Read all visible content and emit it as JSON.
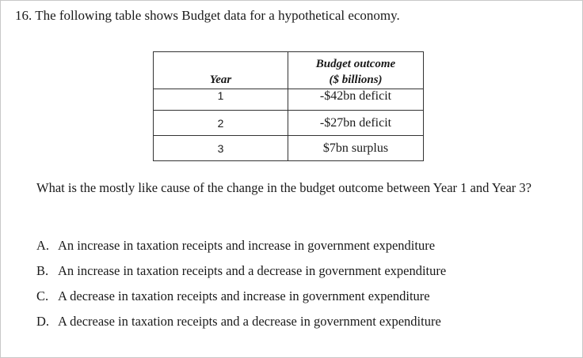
{
  "question": {
    "title": "16. The following table shows Budget data for a hypothetical economy."
  },
  "table": {
    "headers": {
      "year": "Year",
      "outcome_line1": "Budget outcome",
      "outcome_line2": "($ billions)"
    },
    "rows": [
      {
        "year": "1",
        "outcome": "-$42bn deficit"
      },
      {
        "year": "2",
        "outcome": "-$27bn deficit"
      },
      {
        "year": "3",
        "outcome": "$7bn surplus"
      }
    ]
  },
  "prompt": "What is the mostly like cause of the change in the budget outcome between Year 1 and Year 3?",
  "options": [
    {
      "letter": "A.",
      "text": "An increase in taxation receipts and increase in government expenditure"
    },
    {
      "letter": "B.",
      "text": "An increase in taxation receipts and a decrease in government expenditure"
    },
    {
      "letter": "C.",
      "text": "A decrease in taxation receipts and increase in government expenditure"
    },
    {
      "letter": "D.",
      "text": "A decrease in taxation receipts and a decrease in government expenditure"
    }
  ]
}
